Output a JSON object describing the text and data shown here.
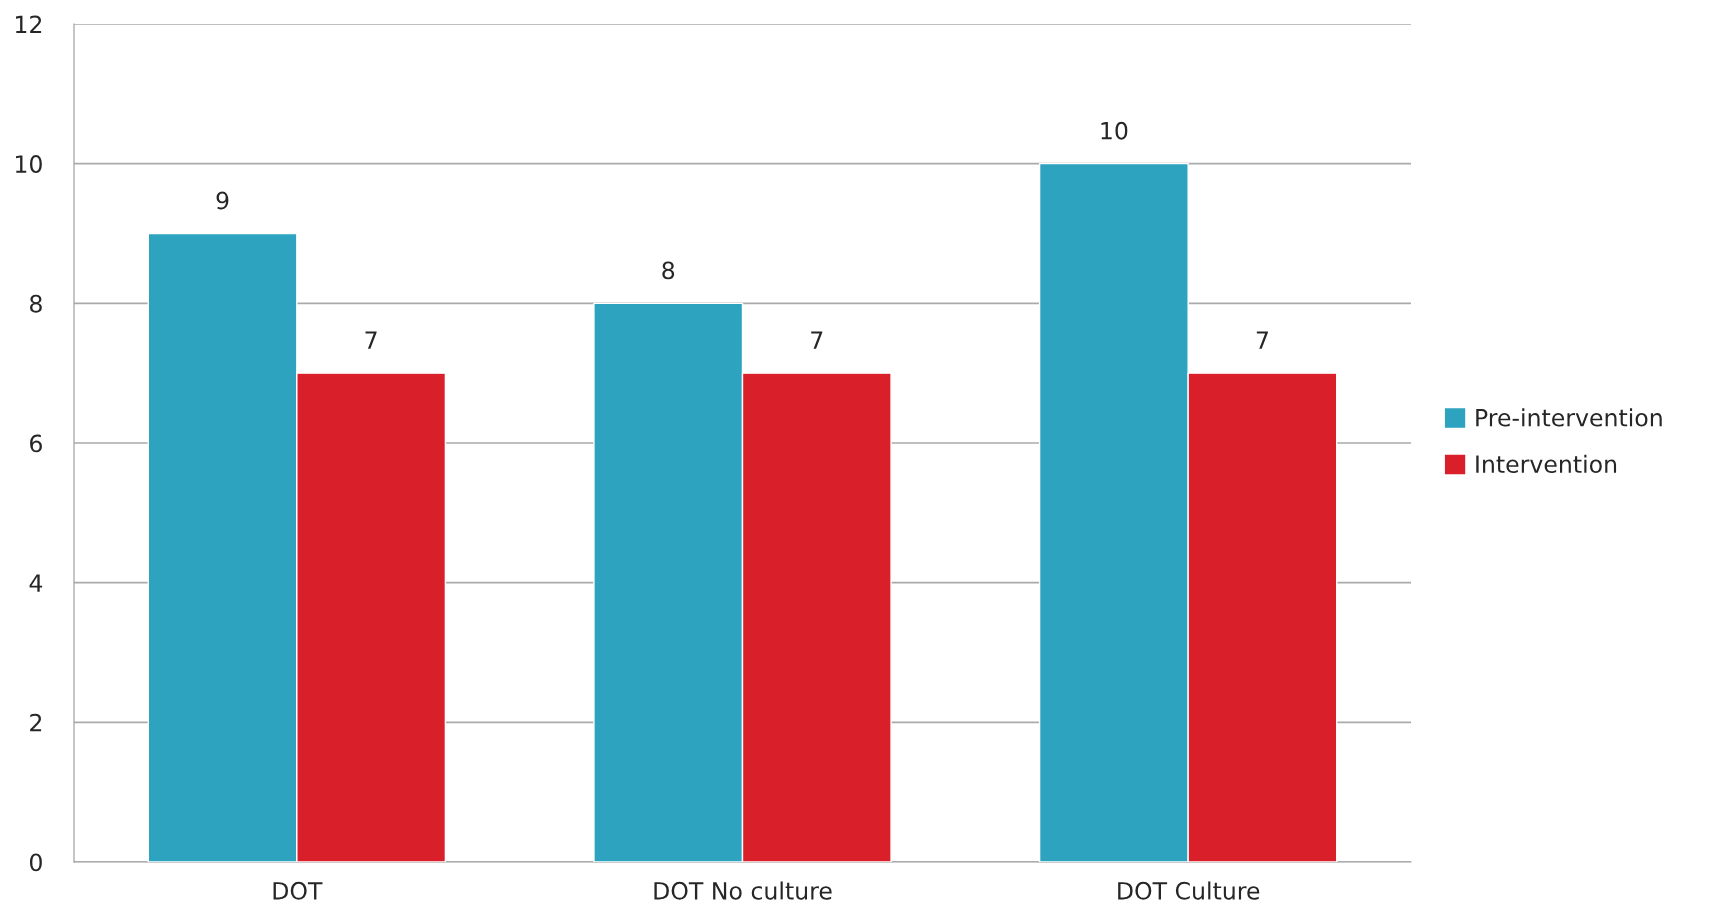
{
  "chart_data": {
    "type": "bar",
    "categories": [
      "DOT",
      "DOT No culture",
      "DOT Culture"
    ],
    "series": [
      {
        "name": "Pre-intervention",
        "color": "#2ea3c0",
        "values": [
          9,
          8,
          10
        ]
      },
      {
        "name": "Intervention",
        "color": "#d91f29",
        "values": [
          7,
          7,
          7
        ]
      }
    ],
    "ylim": [
      0,
      12
    ],
    "yticks": [
      0,
      2,
      4,
      6,
      8,
      10,
      12
    ],
    "grid": "y",
    "legend": "right",
    "data_labels": true
  }
}
